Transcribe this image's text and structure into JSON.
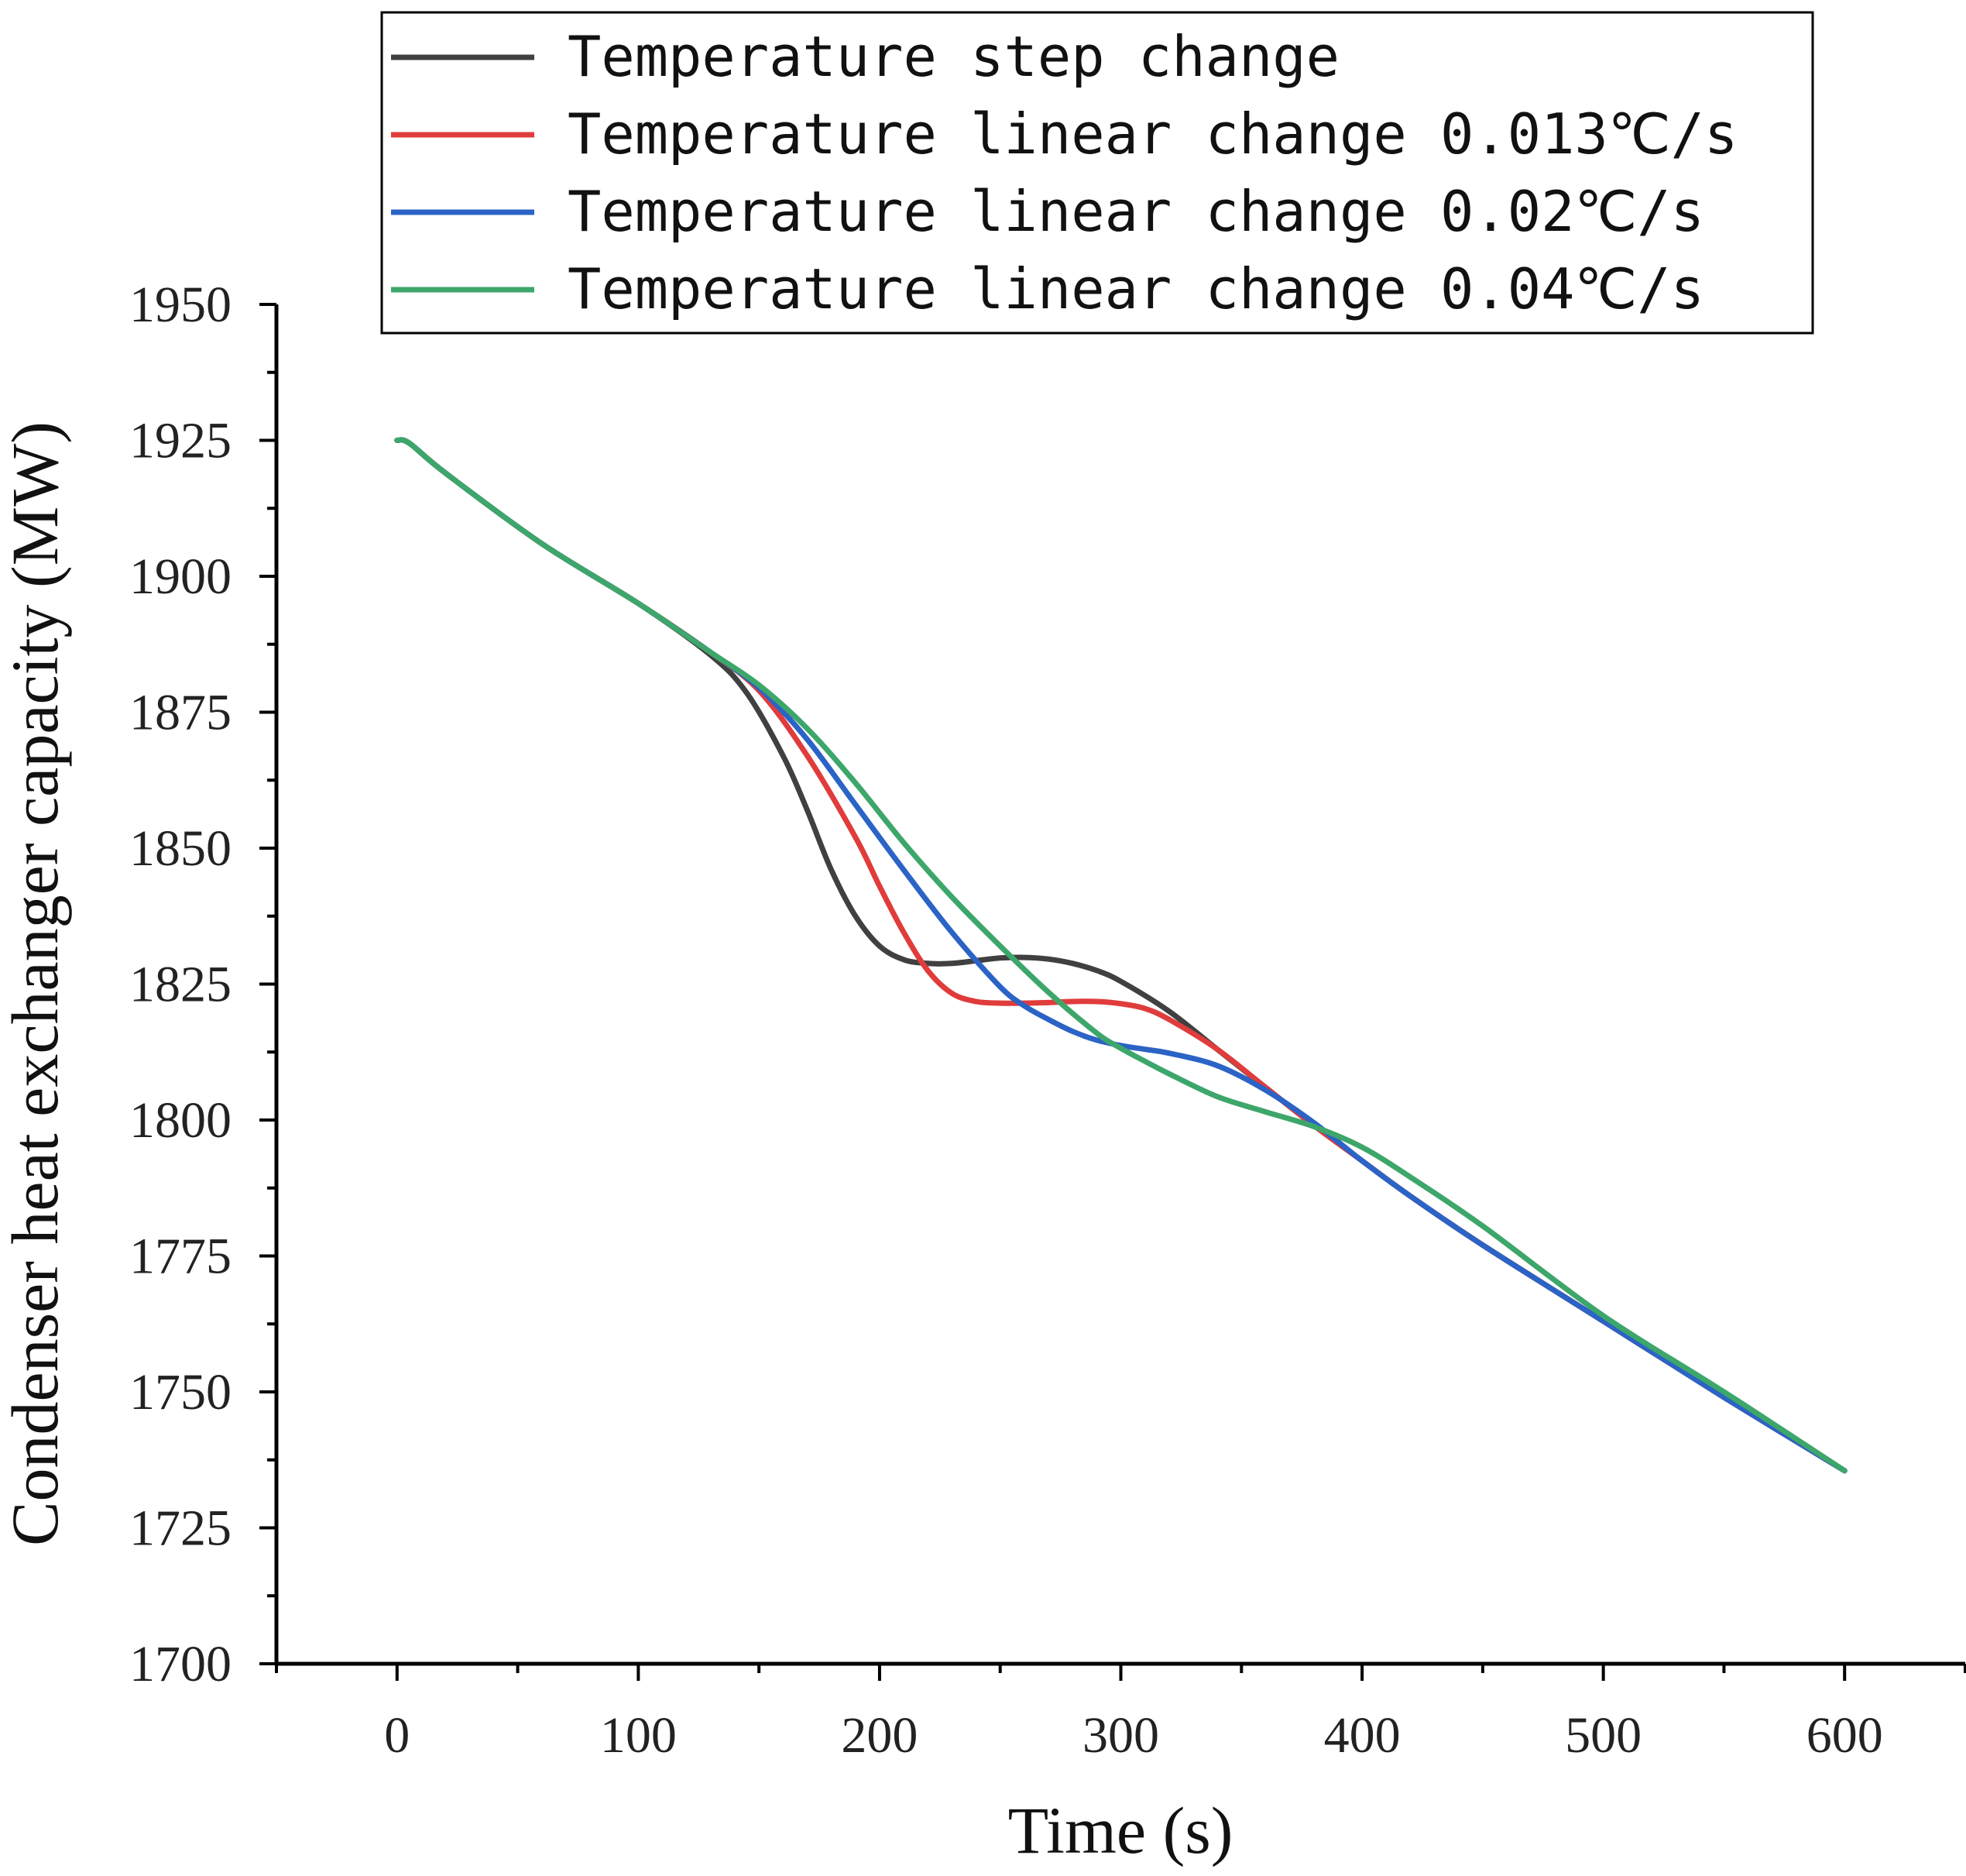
{
  "chart_data": {
    "type": "line",
    "title": "",
    "xlabel": "Time (s)",
    "ylabel": "Condenser heat exchanger capacity (MW)",
    "xlim": [
      -50,
      650
    ],
    "ylim": [
      1700,
      1950
    ],
    "xticks": [
      0,
      100,
      200,
      300,
      400,
      500,
      600
    ],
    "yticks": [
      1700,
      1725,
      1750,
      1775,
      1800,
      1825,
      1850,
      1875,
      1900,
      1925,
      1950
    ],
    "legend_position": "top",
    "series": [
      {
        "name": "Temperature step change",
        "color": "#404040",
        "x": [
          0,
          5,
          20,
          60,
          100,
          130,
          145,
          160,
          170,
          180,
          190,
          200,
          210,
          220,
          230,
          240,
          250,
          260,
          270,
          280,
          290,
          300,
          320,
          340,
          360,
          380,
          400,
          420,
          450,
          500,
          550,
          600
        ],
        "y": [
          1925,
          1924.5,
          1919,
          1906,
          1895,
          1885.5,
          1878.5,
          1867,
          1857,
          1846,
          1837.5,
          1832,
          1829.5,
          1828.8,
          1828.8,
          1829.3,
          1829.8,
          1829.9,
          1829.6,
          1828.8,
          1827.5,
          1825.5,
          1820,
          1813,
          1806,
          1799,
          1792.5,
          1786,
          1777,
          1763,
          1749,
          1735.5
        ]
      },
      {
        "name": "Temperature linear change 0.013℃/s",
        "color": "#e03c3c",
        "x": [
          0,
          5,
          20,
          60,
          100,
          130,
          150,
          170,
          190,
          200,
          210,
          220,
          230,
          240,
          250,
          260,
          270,
          280,
          290,
          300,
          310,
          320,
          340,
          360,
          380,
          400,
          420,
          450,
          500,
          550,
          600
        ],
        "y": [
          1925,
          1924.5,
          1919,
          1906,
          1895,
          1886,
          1879,
          1867,
          1852,
          1843,
          1834.5,
          1827.5,
          1823.3,
          1821.8,
          1821.5,
          1821.5,
          1821.6,
          1821.8,
          1821.8,
          1821.4,
          1820.5,
          1818.5,
          1813,
          1806,
          1799,
          1792.5,
          1786,
          1777,
          1763,
          1749,
          1735.5
        ]
      },
      {
        "name": "Temperature linear change 0.02℃/s",
        "color": "#2b63c6",
        "x": [
          0,
          5,
          20,
          60,
          100,
          130,
          150,
          170,
          190,
          210,
          230,
          250,
          260,
          270,
          280,
          290,
          300,
          310,
          320,
          340,
          360,
          380,
          400,
          420,
          450,
          500,
          550,
          600
        ],
        "y": [
          1925,
          1924.5,
          1919,
          1906,
          1895,
          1886,
          1879.5,
          1870,
          1858,
          1846,
          1834.5,
          1824.5,
          1821,
          1818.5,
          1816.3,
          1814.7,
          1813.7,
          1813,
          1812.3,
          1810,
          1805.5,
          1799.5,
          1792.5,
          1786,
          1777,
          1763,
          1749,
          1735.5
        ]
      },
      {
        "name": "Temperature linear change 0.04℃/s",
        "color": "#3da66a",
        "x": [
          0,
          5,
          20,
          60,
          100,
          130,
          150,
          170,
          190,
          210,
          230,
          250,
          270,
          290,
          300,
          310,
          320,
          340,
          360,
          380,
          400,
          420,
          450,
          500,
          550,
          600
        ],
        "y": [
          1925,
          1924.5,
          1919,
          1906,
          1895,
          1886,
          1880,
          1872,
          1862,
          1851,
          1841,
          1832,
          1823.5,
          1816,
          1813.2,
          1810.8,
          1808.5,
          1804.3,
          1801.5,
          1798.8,
          1795,
          1789.5,
          1780.5,
          1764,
          1750,
          1735.5
        ]
      }
    ]
  }
}
